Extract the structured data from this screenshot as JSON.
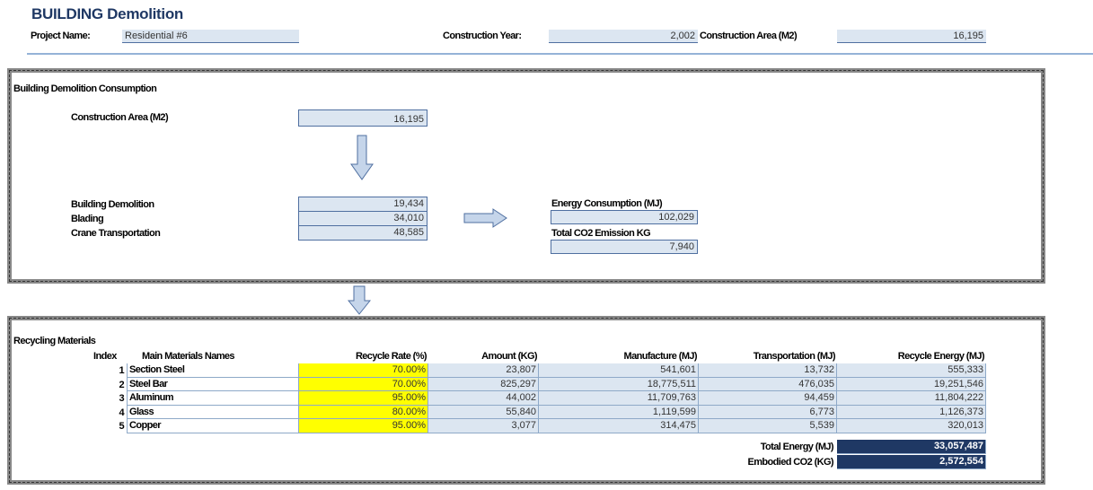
{
  "header": {
    "title": "BUILDING Demolition",
    "project_name_label": "Project Name:",
    "project_name": "Residential #6",
    "construction_year_label": "Construction Year:",
    "construction_year": "2,002",
    "construction_area_label": "Construction Area (M2)",
    "construction_area": "16,195"
  },
  "consumption": {
    "title": "Building Demolition Consumption",
    "area_label": "Construction Area (M2)",
    "area_value": "16,195",
    "items": [
      {
        "label": "Building Demolition",
        "value": "19,434"
      },
      {
        "label": "Blading",
        "value": "34,010"
      },
      {
        "label": "Crane Transportation",
        "value": "48,585"
      }
    ],
    "energy_label": "Energy Consumption (MJ)",
    "energy_value": "102,029",
    "co2_label": "Total CO2 Emission KG",
    "co2_value": "7,940"
  },
  "recycling": {
    "title": "Recycling Materials",
    "headers": [
      "Index",
      "Main Materials Names",
      "Recycle Rate (%)",
      "Amount (KG)",
      "Manufacture (MJ)",
      "Transportation (MJ)",
      "Recycle Energy (MJ)"
    ],
    "rows": [
      [
        "1",
        "Section Steel",
        "70.00%",
        "23,807",
        "541,601",
        "13,732",
        "555,333"
      ],
      [
        "2",
        "Steel Bar",
        "70.00%",
        "825,297",
        "18,775,511",
        "476,035",
        "19,251,546"
      ],
      [
        "3",
        "Aluminum",
        "95.00%",
        "44,002",
        "11,709,763",
        "94,459",
        "11,804,222"
      ],
      [
        "4",
        "Glass",
        "80.00%",
        "55,840",
        "1,119,599",
        "6,773",
        "1,126,373"
      ],
      [
        "5",
        "Copper",
        "95.00%",
        "3,077",
        "314,475",
        "5,539",
        "320,013"
      ]
    ],
    "totals": [
      {
        "label": "Total Energy (MJ)",
        "value": "33,057,487"
      },
      {
        "label": "Embodied CO2 (KG)",
        "value": "2,572,554"
      }
    ]
  }
}
